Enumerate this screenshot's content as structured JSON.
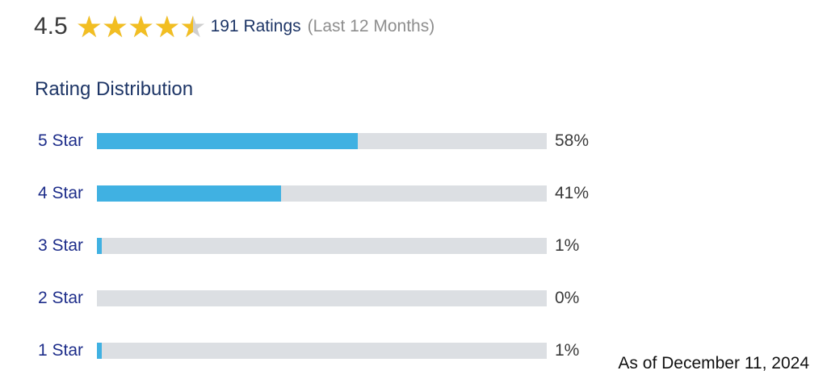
{
  "summary": {
    "average": "4.5",
    "stars_filled": 4.5,
    "stars_total": 5,
    "ratings_count": "191 Ratings",
    "period": "(Last 12 Months)"
  },
  "distribution": {
    "title": "Rating Distribution",
    "rows": [
      {
        "label": "5 Star",
        "percent_text": "58%",
        "percent": 58
      },
      {
        "label": "4 Star",
        "percent_text": "41%",
        "percent": 41
      },
      {
        "label": "3 Star",
        "percent_text": "1%",
        "percent": 1
      },
      {
        "label": "2 Star",
        "percent_text": "0%",
        "percent": 0
      },
      {
        "label": "1 Star",
        "percent_text": "1%",
        "percent": 1
      }
    ]
  },
  "footer": {
    "as_of": "As of December 11, 2024"
  },
  "colors": {
    "bar_fill": "#40b1e2",
    "bar_track": "#dcdfe3",
    "star_fill": "#f2be22",
    "star_empty": "#cfcfcf",
    "label_text": "#1d2d8a",
    "heading_text": "#1d3566"
  }
}
